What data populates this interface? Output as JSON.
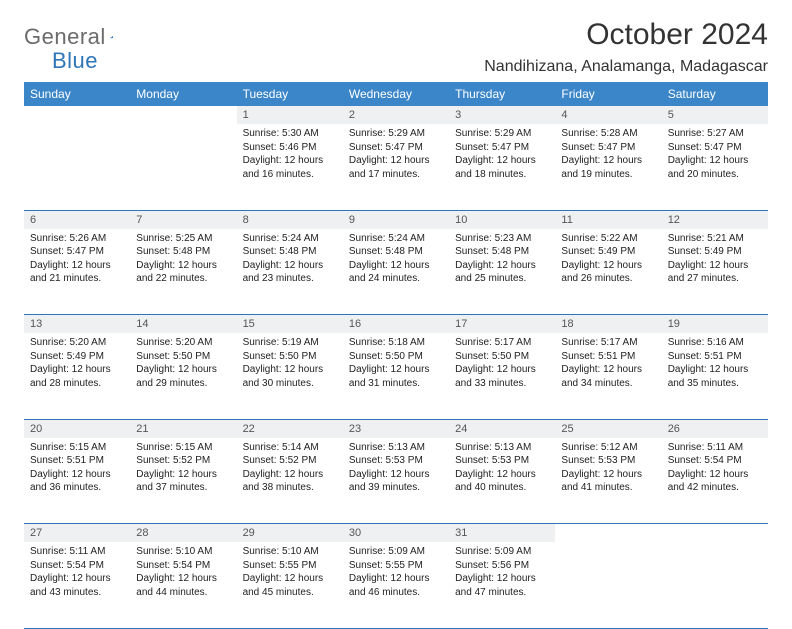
{
  "brand": {
    "part1": "General",
    "part2": "Blue"
  },
  "title": "October 2024",
  "location": "Nandihizana, Analamanga, Madagascar",
  "colors": {
    "header_bg": "#3b86c8",
    "row_divider": "#2f76b8",
    "daynum_bg": "#eef0f2",
    "text": "#222222",
    "brand_grey": "#6b6b6b",
    "brand_blue": "#2f76b8"
  },
  "weekdays": [
    "Sunday",
    "Monday",
    "Tuesday",
    "Wednesday",
    "Thursday",
    "Friday",
    "Saturday"
  ],
  "weeks": [
    [
      null,
      null,
      {
        "d": "1",
        "sr": "5:30 AM",
        "ss": "5:46 PM",
        "dl": "12 hours and 16 minutes."
      },
      {
        "d": "2",
        "sr": "5:29 AM",
        "ss": "5:47 PM",
        "dl": "12 hours and 17 minutes."
      },
      {
        "d": "3",
        "sr": "5:29 AM",
        "ss": "5:47 PM",
        "dl": "12 hours and 18 minutes."
      },
      {
        "d": "4",
        "sr": "5:28 AM",
        "ss": "5:47 PM",
        "dl": "12 hours and 19 minutes."
      },
      {
        "d": "5",
        "sr": "5:27 AM",
        "ss": "5:47 PM",
        "dl": "12 hours and 20 minutes."
      }
    ],
    [
      {
        "d": "6",
        "sr": "5:26 AM",
        "ss": "5:47 PM",
        "dl": "12 hours and 21 minutes."
      },
      {
        "d": "7",
        "sr": "5:25 AM",
        "ss": "5:48 PM",
        "dl": "12 hours and 22 minutes."
      },
      {
        "d": "8",
        "sr": "5:24 AM",
        "ss": "5:48 PM",
        "dl": "12 hours and 23 minutes."
      },
      {
        "d": "9",
        "sr": "5:24 AM",
        "ss": "5:48 PM",
        "dl": "12 hours and 24 minutes."
      },
      {
        "d": "10",
        "sr": "5:23 AM",
        "ss": "5:48 PM",
        "dl": "12 hours and 25 minutes."
      },
      {
        "d": "11",
        "sr": "5:22 AM",
        "ss": "5:49 PM",
        "dl": "12 hours and 26 minutes."
      },
      {
        "d": "12",
        "sr": "5:21 AM",
        "ss": "5:49 PM",
        "dl": "12 hours and 27 minutes."
      }
    ],
    [
      {
        "d": "13",
        "sr": "5:20 AM",
        "ss": "5:49 PM",
        "dl": "12 hours and 28 minutes."
      },
      {
        "d": "14",
        "sr": "5:20 AM",
        "ss": "5:50 PM",
        "dl": "12 hours and 29 minutes."
      },
      {
        "d": "15",
        "sr": "5:19 AM",
        "ss": "5:50 PM",
        "dl": "12 hours and 30 minutes."
      },
      {
        "d": "16",
        "sr": "5:18 AM",
        "ss": "5:50 PM",
        "dl": "12 hours and 31 minutes."
      },
      {
        "d": "17",
        "sr": "5:17 AM",
        "ss": "5:50 PM",
        "dl": "12 hours and 33 minutes."
      },
      {
        "d": "18",
        "sr": "5:17 AM",
        "ss": "5:51 PM",
        "dl": "12 hours and 34 minutes."
      },
      {
        "d": "19",
        "sr": "5:16 AM",
        "ss": "5:51 PM",
        "dl": "12 hours and 35 minutes."
      }
    ],
    [
      {
        "d": "20",
        "sr": "5:15 AM",
        "ss": "5:51 PM",
        "dl": "12 hours and 36 minutes."
      },
      {
        "d": "21",
        "sr": "5:15 AM",
        "ss": "5:52 PM",
        "dl": "12 hours and 37 minutes."
      },
      {
        "d": "22",
        "sr": "5:14 AM",
        "ss": "5:52 PM",
        "dl": "12 hours and 38 minutes."
      },
      {
        "d": "23",
        "sr": "5:13 AM",
        "ss": "5:53 PM",
        "dl": "12 hours and 39 minutes."
      },
      {
        "d": "24",
        "sr": "5:13 AM",
        "ss": "5:53 PM",
        "dl": "12 hours and 40 minutes."
      },
      {
        "d": "25",
        "sr": "5:12 AM",
        "ss": "5:53 PM",
        "dl": "12 hours and 41 minutes."
      },
      {
        "d": "26",
        "sr": "5:11 AM",
        "ss": "5:54 PM",
        "dl": "12 hours and 42 minutes."
      }
    ],
    [
      {
        "d": "27",
        "sr": "5:11 AM",
        "ss": "5:54 PM",
        "dl": "12 hours and 43 minutes."
      },
      {
        "d": "28",
        "sr": "5:10 AM",
        "ss": "5:54 PM",
        "dl": "12 hours and 44 minutes."
      },
      {
        "d": "29",
        "sr": "5:10 AM",
        "ss": "5:55 PM",
        "dl": "12 hours and 45 minutes."
      },
      {
        "d": "30",
        "sr": "5:09 AM",
        "ss": "5:55 PM",
        "dl": "12 hours and 46 minutes."
      },
      {
        "d": "31",
        "sr": "5:09 AM",
        "ss": "5:56 PM",
        "dl": "12 hours and 47 minutes."
      },
      null,
      null
    ]
  ],
  "labels": {
    "sunrise": "Sunrise: ",
    "sunset": "Sunset: ",
    "daylight": "Daylight: "
  }
}
